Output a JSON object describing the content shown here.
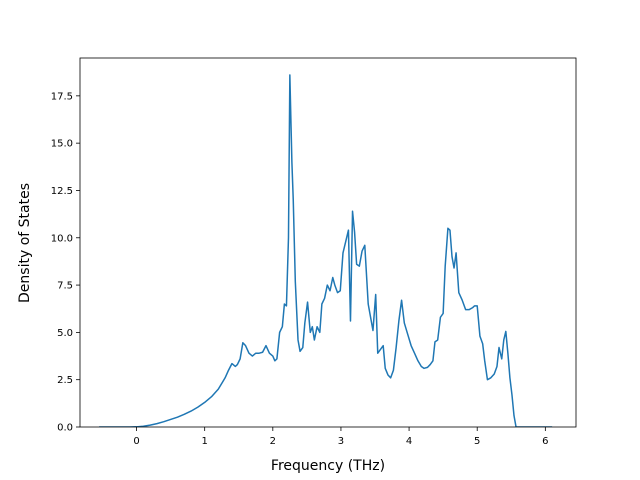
{
  "chart_data": {
    "type": "line",
    "title": "",
    "xlabel": "Frequency (THz)",
    "ylabel": "Density of States",
    "xlim": [
      -0.83,
      6.45
    ],
    "ylim": [
      0,
      19.5
    ],
    "xticks": [
      0,
      1,
      2,
      3,
      4,
      5,
      6
    ],
    "yticks": [
      0.0,
      2.5,
      5.0,
      7.5,
      10.0,
      12.5,
      15.0,
      17.5
    ],
    "xtick_labels": [
      "0",
      "1",
      "2",
      "3",
      "4",
      "5",
      "6"
    ],
    "ytick_labels": [
      "0.0",
      "2.5",
      "5.0",
      "7.5",
      "10.0",
      "12.5",
      "15.0",
      "17.5"
    ],
    "grid": false,
    "legend": "none",
    "line_color": "#1f77b4",
    "series": [
      {
        "x": [
          -0.55,
          -0.3,
          -0.1,
          0.0,
          0.1,
          0.2,
          0.3,
          0.4,
          0.5,
          0.6,
          0.7,
          0.8,
          0.9,
          1.0,
          1.1,
          1.2,
          1.3,
          1.35,
          1.4,
          1.45,
          1.48,
          1.52,
          1.56,
          1.6,
          1.65,
          1.7,
          1.75,
          1.8,
          1.85,
          1.9,
          1.95,
          2.0,
          2.03,
          2.06,
          2.1,
          2.14,
          2.17,
          2.2,
          2.23,
          2.25,
          2.28,
          2.3,
          2.33,
          2.37,
          2.4,
          2.44,
          2.47,
          2.51,
          2.55,
          2.58,
          2.61,
          2.65,
          2.69,
          2.72,
          2.76,
          2.8,
          2.84,
          2.88,
          2.91,
          2.95,
          2.99,
          3.03,
          3.07,
          3.11,
          3.14,
          3.17,
          3.2,
          3.23,
          3.27,
          3.31,
          3.35,
          3.4,
          3.43,
          3.47,
          3.51,
          3.54,
          3.58,
          3.62,
          3.65,
          3.69,
          3.73,
          3.77,
          3.81,
          3.85,
          3.89,
          3.93,
          3.98,
          4.03,
          4.08,
          4.13,
          4.18,
          4.22,
          4.27,
          4.31,
          4.35,
          4.38,
          4.42,
          4.46,
          4.5,
          4.53,
          4.57,
          4.6,
          4.63,
          4.66,
          4.69,
          4.73,
          4.78,
          4.83,
          4.88,
          4.93,
          4.96,
          5.0,
          5.04,
          5.08,
          5.11,
          5.15,
          5.2,
          5.25,
          5.29,
          5.32,
          5.36,
          5.39,
          5.42,
          5.45,
          5.48,
          5.51,
          5.54,
          5.57,
          5.6,
          6.1
        ],
        "values": [
          0.0,
          0.0,
          0.0,
          0.01,
          0.04,
          0.1,
          0.18,
          0.28,
          0.4,
          0.52,
          0.67,
          0.84,
          1.05,
          1.3,
          1.6,
          2.0,
          2.6,
          3.0,
          3.35,
          3.2,
          3.3,
          3.6,
          4.45,
          4.3,
          3.9,
          3.75,
          3.9,
          3.9,
          3.95,
          4.3,
          3.9,
          3.75,
          3.5,
          3.6,
          5.0,
          5.3,
          6.5,
          6.4,
          10.0,
          18.6,
          14.0,
          12.0,
          7.7,
          4.6,
          4.0,
          4.2,
          5.5,
          6.6,
          5.0,
          5.3,
          4.6,
          5.3,
          5.0,
          6.5,
          6.8,
          7.5,
          7.2,
          7.9,
          7.5,
          7.1,
          7.2,
          9.2,
          9.8,
          10.4,
          5.6,
          11.4,
          10.3,
          8.6,
          8.5,
          9.3,
          9.6,
          6.5,
          5.9,
          5.1,
          7.0,
          3.9,
          4.1,
          4.3,
          3.1,
          2.75,
          2.6,
          3.0,
          4.2,
          5.6,
          6.7,
          5.5,
          4.9,
          4.3,
          3.9,
          3.5,
          3.2,
          3.1,
          3.15,
          3.3,
          3.5,
          4.5,
          4.6,
          5.8,
          6.0,
          8.5,
          10.5,
          10.4,
          9.0,
          8.4,
          9.2,
          7.1,
          6.7,
          6.2,
          6.2,
          6.3,
          6.4,
          6.4,
          4.8,
          4.4,
          3.5,
          2.5,
          2.6,
          2.8,
          3.2,
          4.2,
          3.6,
          4.6,
          5.05,
          3.9,
          2.6,
          1.7,
          0.6,
          0.0,
          0.0,
          0.0
        ]
      }
    ]
  }
}
